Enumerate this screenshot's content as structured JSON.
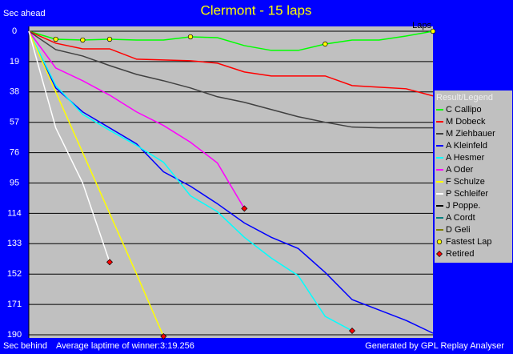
{
  "chart_data": {
    "type": "line",
    "title": "Clermont - 15 laps",
    "y_label_top": "Sec ahead",
    "y_label_bottom": "Sec behind",
    "x_label": "Laps",
    "footer_left": "Average laptime of winner:3:19.256",
    "footer_right": "Generated by GPL Replay Analyser",
    "legend_title": "Result/Legend",
    "legend": "right",
    "grid": true,
    "y_inverted": true,
    "x": [
      0,
      1,
      2,
      3,
      4,
      5,
      6,
      7,
      8,
      9,
      10,
      11,
      12,
      13,
      14,
      15
    ],
    "xlim": [
      0,
      15
    ],
    "ylim": [
      0,
      190
    ],
    "yticks": [
      0,
      19,
      38,
      57,
      76,
      95,
      114,
      133,
      152,
      171,
      190
    ],
    "series": [
      {
        "name": "C Callipo",
        "color": "#00ff00",
        "values": [
          0,
          5,
          5.5,
          5,
          5.5,
          5.5,
          3.5,
          4,
          9,
          12,
          12,
          8,
          5.5,
          5.5,
          3,
          0
        ]
      },
      {
        "name": "M Dobeck",
        "color": "#ff0000",
        "values": [
          0,
          7.5,
          11,
          11,
          17.5,
          18,
          18.5,
          20,
          25.5,
          28,
          28,
          28,
          34,
          35,
          36,
          40.5
        ]
      },
      {
        "name": "M Ziehbauer",
        "color": "#404040",
        "values": [
          0,
          11.5,
          15.5,
          21.5,
          27,
          31,
          35.5,
          41,
          44.5,
          49,
          53.5,
          57,
          60,
          60.5,
          60.5,
          60.5
        ]
      },
      {
        "name": "A Kleinfeld",
        "color": "#0000ff",
        "values": [
          0,
          35.5,
          50.5,
          60.5,
          70.5,
          88,
          97,
          108,
          120,
          129,
          136,
          151,
          168,
          174.5,
          181,
          189
        ]
      },
      {
        "name": "A Hesmer",
        "color": "#00ffff",
        "values": [
          0,
          34,
          52,
          62,
          71.5,
          82,
          103,
          113,
          129,
          142,
          153,
          178.5,
          187.5,
          null,
          null,
          null
        ]
      },
      {
        "name": "A Oder",
        "color": "#ff00ff",
        "values": [
          0,
          23,
          31,
          40,
          50.5,
          59,
          69.5,
          82.5,
          111,
          null,
          null,
          null,
          null,
          null,
          null,
          null
        ]
      },
      {
        "name": "F Schulze",
        "color": "#ffff00",
        "values": [
          0,
          38,
          76,
          114,
          152,
          191,
          null,
          null,
          null,
          null,
          null,
          null,
          null,
          null,
          null,
          null
        ]
      },
      {
        "name": "P Schleifer",
        "color": "#ffffff",
        "values": [
          0,
          60.5,
          95,
          144.5,
          null,
          null,
          null,
          null,
          null,
          null,
          null,
          null,
          null,
          null,
          null,
          null
        ]
      },
      {
        "name": "J Poppe.",
        "color": "#000000",
        "values": [
          null,
          null,
          null,
          null,
          null,
          null,
          null,
          null,
          null,
          null,
          null,
          null,
          null,
          null,
          null,
          null
        ]
      },
      {
        "name": "A Cordt",
        "color": "#008080",
        "values": [
          null,
          null,
          null,
          null,
          null,
          null,
          null,
          null,
          null,
          null,
          null,
          null,
          null,
          null,
          null,
          null
        ]
      },
      {
        "name": "D Geli",
        "color": "#808000",
        "values": [
          null,
          null,
          null,
          null,
          null,
          null,
          null,
          null,
          null,
          null,
          null,
          null,
          null,
          null,
          null,
          null
        ]
      }
    ],
    "markers": [
      {
        "name": "Fastest Lap",
        "color": "#ffff00",
        "shape": "circle",
        "values": [
          null,
          5,
          5.5,
          5,
          null,
          null,
          3.5,
          null,
          null,
          null,
          null,
          8,
          null,
          null,
          null,
          0
        ]
      },
      {
        "name": "Retired",
        "color": "#ff0000",
        "shape": "diamond",
        "values": [
          null,
          null,
          null,
          144.5,
          null,
          191,
          null,
          null,
          111,
          null,
          null,
          null,
          187.5,
          null,
          null,
          null
        ]
      }
    ]
  }
}
